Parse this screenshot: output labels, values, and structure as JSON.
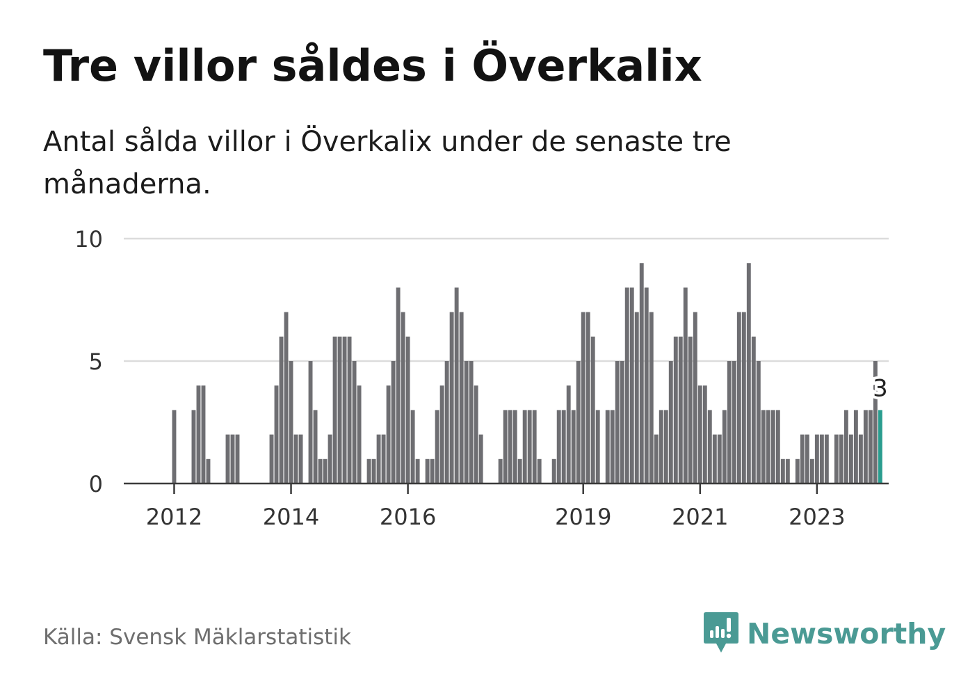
{
  "title": "Tre villor såldes i Överkalix",
  "subtitle": "Antal sålda villor i Överkalix under de senaste tre månaderna.",
  "source": "Källa: Svensk Mäklarstatistik",
  "brand": {
    "name": "Newsworthy",
    "icon": "newsworthy-logo-icon",
    "color": "#4a9a94"
  },
  "chart_data": {
    "type": "bar",
    "title": "Tre villor såldes i Överkalix",
    "ylim": [
      0,
      10
    ],
    "yticks": [
      "0",
      "5",
      "10"
    ],
    "start": "2011-09",
    "xticks": [
      {
        "label": "2012",
        "index": 3
      },
      {
        "label": "2014",
        "index": 27
      },
      {
        "label": "2016",
        "index": 51
      },
      {
        "label": "2019",
        "index": 87
      },
      {
        "label": "2021",
        "index": 111
      },
      {
        "label": "2023",
        "index": 135
      }
    ],
    "values": [
      0,
      0,
      0,
      3,
      0,
      0,
      0,
      3,
      4,
      4,
      1,
      0,
      0,
      0,
      2,
      2,
      2,
      0,
      0,
      0,
      0,
      0,
      0,
      2,
      4,
      6,
      7,
      5,
      2,
      2,
      0,
      5,
      3,
      1,
      1,
      2,
      6,
      6,
      6,
      6,
      5,
      4,
      0,
      1,
      1,
      2,
      2,
      4,
      5,
      8,
      7,
      6,
      3,
      1,
      0,
      1,
      1,
      3,
      4,
      5,
      7,
      8,
      7,
      5,
      5,
      4,
      2,
      0,
      0,
      0,
      1,
      3,
      3,
      3,
      1,
      3,
      3,
      3,
      1,
      0,
      0,
      1,
      3,
      3,
      4,
      3,
      5,
      7,
      7,
      6,
      3,
      0,
      3,
      3,
      5,
      5,
      8,
      8,
      7,
      9,
      8,
      7,
      2,
      3,
      3,
      5,
      6,
      6,
      8,
      6,
      7,
      4,
      4,
      3,
      2,
      2,
      3,
      5,
      5,
      7,
      7,
      9,
      6,
      5,
      3,
      3,
      3,
      3,
      1,
      1,
      0,
      1,
      2,
      2,
      1,
      2,
      2,
      2,
      0,
      2,
      2,
      3,
      2,
      3,
      2,
      3,
      3,
      5,
      3
    ],
    "highlight": {
      "index": 148,
      "value": 3,
      "label": "3",
      "color": "#2a9d8f"
    },
    "bar_color": "#6e6e72",
    "grid": true
  }
}
